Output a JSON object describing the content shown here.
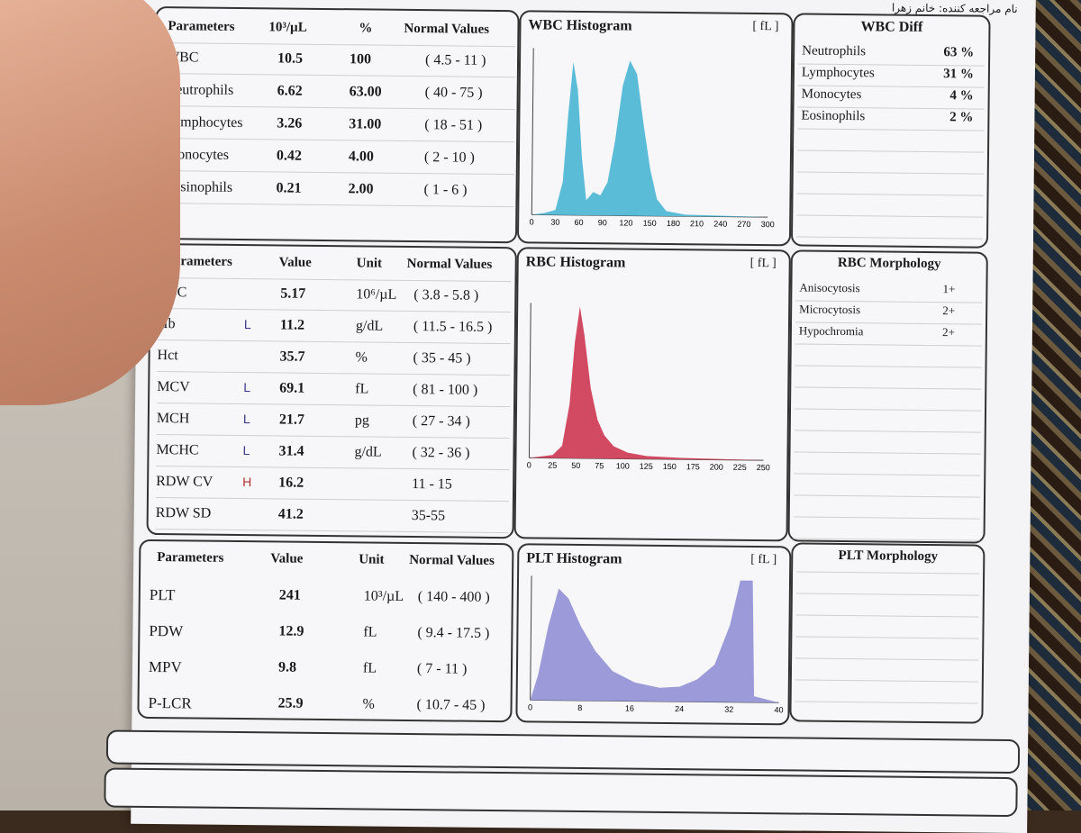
{
  "header": {
    "patient_label": "نام مراجعه کننده: خانم زهرا"
  },
  "wbc": {
    "headers": [
      "Parameters",
      "10³/µL",
      "%",
      "Normal Values"
    ],
    "rows": [
      {
        "name": "WBC",
        "value": "10.5",
        "pct": "100",
        "normal": "( 4.5 - 11 )"
      },
      {
        "name": "Neutrophils",
        "value": "6.62",
        "pct": "63.00",
        "normal": "( 40 - 75 )"
      },
      {
        "name": "Lymphocytes",
        "value": "3.26",
        "pct": "31.00",
        "normal": "( 18 - 51 )"
      },
      {
        "name": "Monocytes",
        "value": "0.42",
        "pct": "4.00",
        "normal": "( 2 - 10 )"
      },
      {
        "name": "Eosinophils",
        "value": "0.21",
        "pct": "2.00",
        "normal": "( 1 - 6 )"
      }
    ]
  },
  "wbc_histogram": {
    "title": "WBC Histogram",
    "unit": "[ fL ]",
    "ticks": [
      "0",
      "30",
      "60",
      "90",
      "120",
      "150",
      "180",
      "210",
      "240",
      "270",
      "300"
    ],
    "color": "#5bbcd8"
  },
  "wbc_diff": {
    "title": "WBC Diff",
    "rows": [
      {
        "name": "Neutrophils",
        "value": "63 %"
      },
      {
        "name": "Lymphocytes",
        "value": "31 %"
      },
      {
        "name": "Monocytes",
        "value": "4 %"
      },
      {
        "name": "Eosinophils",
        "value": "2 %"
      }
    ]
  },
  "rbc": {
    "headers": [
      "Parameters",
      "Value",
      "Unit",
      "Normal Values"
    ],
    "rows": [
      {
        "name": "RBC",
        "flag": "",
        "value": "5.17",
        "unit": "10⁶/µL",
        "normal": "( 3.8 - 5.8 )"
      },
      {
        "name": "Hb",
        "flag": "L",
        "value": "11.2",
        "unit": "g/dL",
        "normal": "( 11.5 - 16.5 )"
      },
      {
        "name": "Hct",
        "flag": "",
        "value": "35.7",
        "unit": "%",
        "normal": "( 35 - 45 )"
      },
      {
        "name": "MCV",
        "flag": "L",
        "value": "69.1",
        "unit": "fL",
        "normal": "( 81 - 100 )"
      },
      {
        "name": "MCH",
        "flag": "L",
        "value": "21.7",
        "unit": "pg",
        "normal": "( 27 - 34 )"
      },
      {
        "name": "MCHC",
        "flag": "L",
        "value": "31.4",
        "unit": "g/dL",
        "normal": "( 32 - 36 )"
      },
      {
        "name": "RDW   CV",
        "flag": "H",
        "value": "16.2",
        "unit": "",
        "normal": "11 - 15"
      },
      {
        "name": "RDW   SD",
        "flag": "",
        "value": "41.2",
        "unit": "",
        "normal": "35-55"
      }
    ]
  },
  "rbc_histogram": {
    "title": "RBC Histogram",
    "unit": "[ fL ]",
    "ticks": [
      "0",
      "25",
      "50",
      "75",
      "100",
      "125",
      "150",
      "175",
      "200",
      "225",
      "250"
    ],
    "color": "#d24a62"
  },
  "rbc_morph": {
    "title": "RBC Morphology",
    "rows": [
      {
        "name": "Anisocytosis",
        "value": "1+"
      },
      {
        "name": "Microcytosis",
        "value": "2+"
      },
      {
        "name": "Hypochromia",
        "value": "2+"
      }
    ]
  },
  "plt": {
    "headers": [
      "Parameters",
      "Value",
      "Unit",
      "Normal Values"
    ],
    "rows": [
      {
        "name": "PLT",
        "value": "241",
        "unit": "10³/µL",
        "normal": "( 140 - 400 )"
      },
      {
        "name": "PDW",
        "value": "12.9",
        "unit": "fL",
        "normal": "( 9.4 - 17.5 )"
      },
      {
        "name": "MPV",
        "value": "9.8",
        "unit": "fL",
        "normal": "( 7 - 11 )"
      },
      {
        "name": "P-LCR",
        "value": "25.9",
        "unit": "%",
        "normal": "( 10.7 - 45 )"
      }
    ]
  },
  "plt_histogram": {
    "title": "PLT Histogram",
    "unit": "[ fL ]",
    "ticks": [
      "0",
      "8",
      "16",
      "24",
      "32",
      "40"
    ],
    "color": "#9c9ad8"
  },
  "plt_morph": {
    "title": "PLT Morphology"
  }
}
